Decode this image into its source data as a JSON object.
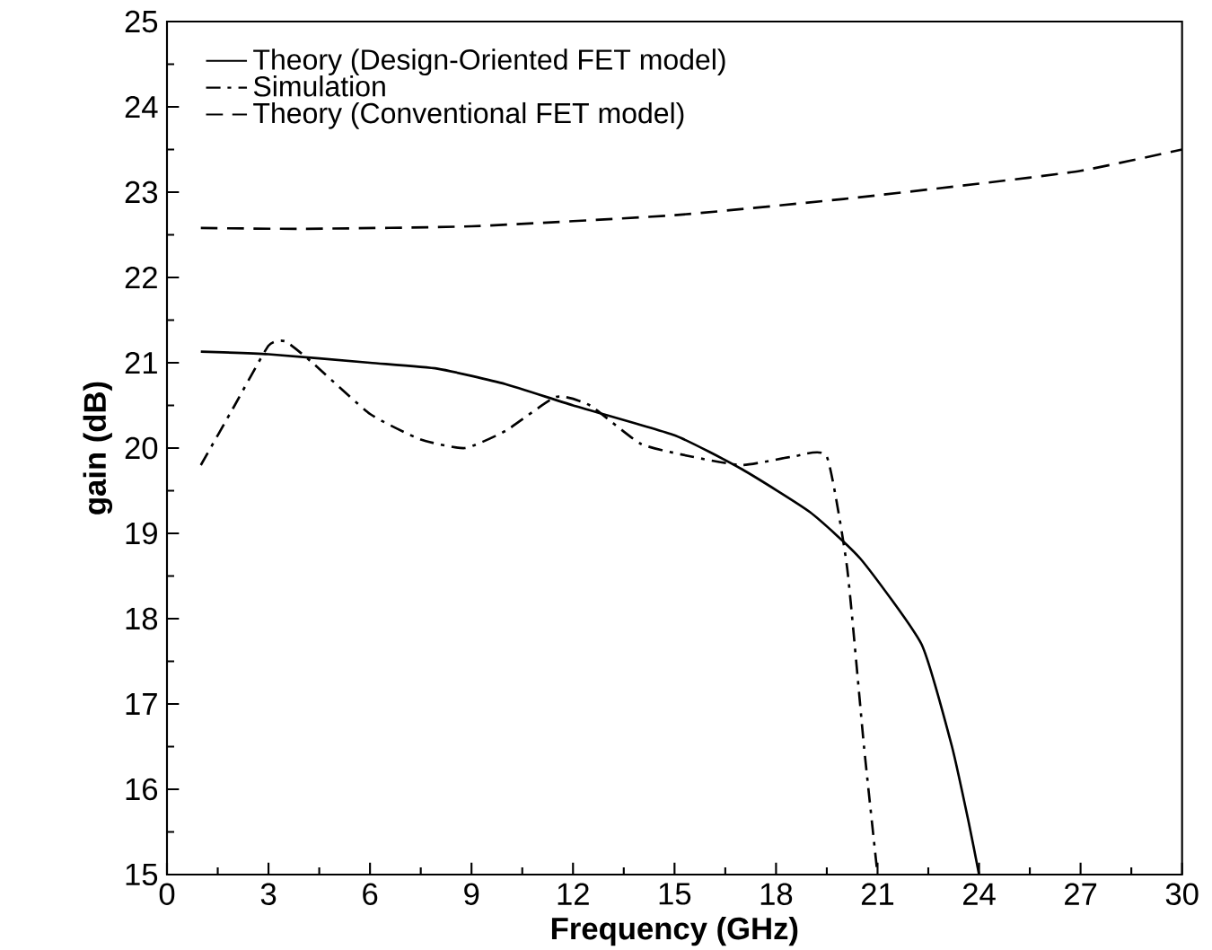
{
  "chart_data": {
    "type": "line",
    "xlabel": "Frequency  (GHz)",
    "ylabel": "gain  (dB)",
    "xlim": [
      0,
      30
    ],
    "ylim": [
      15,
      25
    ],
    "xticks": [
      0,
      3,
      6,
      9,
      12,
      15,
      18,
      21,
      24,
      27,
      30
    ],
    "yticks": [
      15,
      16,
      17,
      18,
      19,
      20,
      21,
      22,
      23,
      24,
      25
    ],
    "grid": false,
    "legend": "top left",
    "marker": "none",
    "series": [
      {
        "name": "Theory (Design-Oriented FET model)",
        "color": "#000000",
        "line_style": "solid",
        "x": [
          1,
          3,
          6,
          8,
          10,
          12,
          15,
          17,
          19,
          20.5,
          22.3,
          23.2,
          23.7,
          24
        ],
        "values": [
          21.13,
          21.1,
          21.0,
          20.93,
          20.75,
          20.5,
          20.15,
          19.75,
          19.25,
          18.7,
          17.7,
          16.5,
          15.6,
          15
        ]
      },
      {
        "name": "Simulation",
        "color": "#000000",
        "line_style": "dashdot",
        "x": [
          1,
          2,
          3,
          3.5,
          4.3,
          6,
          7.5,
          8.8,
          10,
          11.5,
          12.5,
          14,
          15.5,
          17,
          18.5,
          19.5,
          20.1,
          20.6,
          21
        ],
        "values": [
          19.8,
          20.5,
          21.2,
          21.25,
          21.0,
          20.4,
          20.1,
          20.0,
          20.2,
          20.6,
          20.5,
          20.05,
          19.9,
          19.8,
          19.9,
          19.9,
          18.6,
          16.5,
          15
        ]
      },
      {
        "name": "Theory (Conventional FET model)",
        "color": "#000000",
        "line_style": "dashed",
        "x": [
          1,
          4,
          9,
          15,
          20,
          24,
          27,
          30
        ],
        "values": [
          22.58,
          22.57,
          22.6,
          22.73,
          22.92,
          23.1,
          23.25,
          23.5
        ]
      }
    ]
  }
}
